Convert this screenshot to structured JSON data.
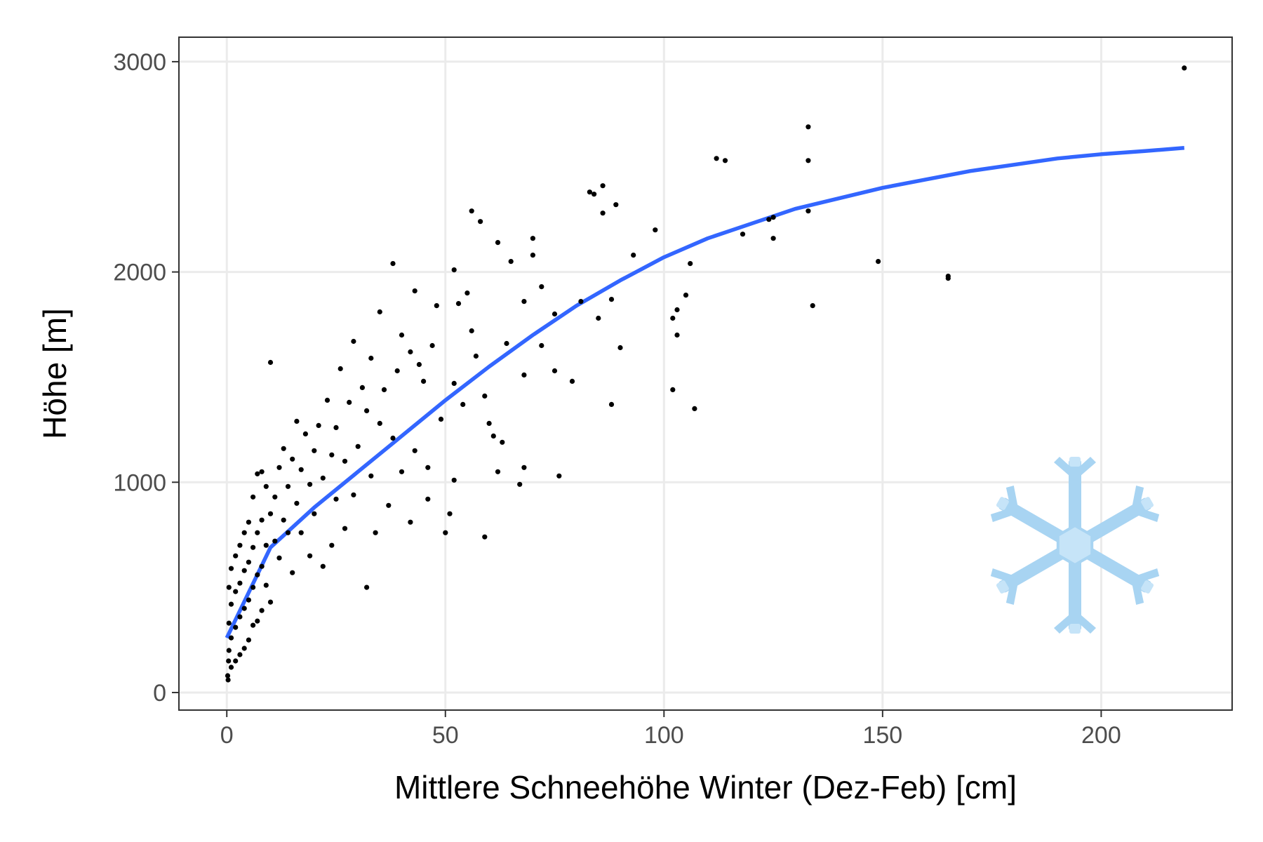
{
  "chart_data": {
    "type": "scatter",
    "title": "",
    "xlabel": "Mittlere Schneehöhe Winter (Dez-Feb) [cm]",
    "ylabel": "Höhe [m]",
    "xlim": [
      -10.95,
      229.95
    ],
    "ylim": [
      -83.5,
      3116.5
    ],
    "x_ticks": [
      0,
      50,
      100,
      150,
      200
    ],
    "y_ticks": [
      0,
      1000,
      2000,
      3000
    ],
    "x_tick_labels": [
      "0",
      "50",
      "100",
      "150",
      "200"
    ],
    "y_tick_labels": [
      "0",
      "1000",
      "2000",
      "3000"
    ],
    "grid": true,
    "legend": "none",
    "colors": {
      "points": "#000000",
      "fit_line": "#3366ff",
      "grid": "#ebebeb",
      "panel_border": "#333333",
      "snowflake": "#a8d4f2"
    },
    "decoration_icon": "snowflake-icon",
    "series": [
      {
        "kind": "points",
        "points": [
          [
            219,
            2970
          ],
          [
            133,
            2690
          ],
          [
            133,
            2530
          ],
          [
            112,
            2540
          ],
          [
            114,
            2530
          ],
          [
            165,
            1980
          ],
          [
            165,
            1970
          ],
          [
            149,
            2050
          ],
          [
            134,
            1840
          ],
          [
            133,
            2290
          ],
          [
            125,
            2260
          ],
          [
            124,
            2250
          ],
          [
            125,
            2160
          ],
          [
            118,
            2180
          ],
          [
            106,
            2040
          ],
          [
            105,
            1890
          ],
          [
            103,
            1820
          ],
          [
            102,
            1780
          ],
          [
            103,
            1700
          ],
          [
            102,
            1440
          ],
          [
            107,
            1350
          ],
          [
            98,
            2200
          ],
          [
            93,
            2080
          ],
          [
            89,
            2320
          ],
          [
            86,
            2410
          ],
          [
            86,
            2280
          ],
          [
            84,
            2370
          ],
          [
            83,
            2380
          ],
          [
            90,
            1640
          ],
          [
            88,
            1870
          ],
          [
            85,
            1780
          ],
          [
            88,
            1370
          ],
          [
            81,
            1860
          ],
          [
            79,
            1480
          ],
          [
            76,
            1030
          ],
          [
            75,
            1800
          ],
          [
            75,
            1530
          ],
          [
            72,
            1930
          ],
          [
            72,
            1650
          ],
          [
            70,
            2160
          ],
          [
            70,
            2080
          ],
          [
            68,
            1860
          ],
          [
            68,
            1510
          ],
          [
            68,
            1070
          ],
          [
            67,
            990
          ],
          [
            65,
            2050
          ],
          [
            64,
            1660
          ],
          [
            63,
            1190
          ],
          [
            62,
            2140
          ],
          [
            62,
            1050
          ],
          [
            61,
            1220
          ],
          [
            60,
            1280
          ],
          [
            59,
            1410
          ],
          [
            59,
            740
          ],
          [
            58,
            2240
          ],
          [
            57,
            1600
          ],
          [
            56,
            2290
          ],
          [
            56,
            1720
          ],
          [
            55,
            1900
          ],
          [
            54,
            1370
          ],
          [
            53,
            1850
          ],
          [
            52,
            2010
          ],
          [
            52,
            1470
          ],
          [
            52,
            1010
          ],
          [
            51,
            850
          ],
          [
            50,
            760
          ],
          [
            49,
            1300
          ],
          [
            48,
            1840
          ],
          [
            47,
            1650
          ],
          [
            46,
            1070
          ],
          [
            46,
            920
          ],
          [
            45,
            1480
          ],
          [
            44,
            1560
          ],
          [
            43,
            1910
          ],
          [
            43,
            1150
          ],
          [
            42,
            1620
          ],
          [
            42,
            810
          ],
          [
            40,
            1700
          ],
          [
            40,
            1050
          ],
          [
            39,
            1530
          ],
          [
            38,
            2040
          ],
          [
            38,
            1210
          ],
          [
            37,
            890
          ],
          [
            36,
            1440
          ],
          [
            35,
            1810
          ],
          [
            35,
            1280
          ],
          [
            34,
            760
          ],
          [
            33,
            1590
          ],
          [
            33,
            1030
          ],
          [
            32,
            1340
          ],
          [
            32,
            500
          ],
          [
            31,
            1450
          ],
          [
            30,
            1170
          ],
          [
            29,
            1670
          ],
          [
            29,
            940
          ],
          [
            28,
            1380
          ],
          [
            27,
            1100
          ],
          [
            27,
            780
          ],
          [
            26,
            1540
          ],
          [
            25,
            1260
          ],
          [
            25,
            920
          ],
          [
            24,
            1130
          ],
          [
            24,
            700
          ],
          [
            23,
            1390
          ],
          [
            22,
            1020
          ],
          [
            22,
            600
          ],
          [
            21,
            1270
          ],
          [
            20,
            1150
          ],
          [
            20,
            850
          ],
          [
            19,
            990
          ],
          [
            19,
            650
          ],
          [
            18,
            1230
          ],
          [
            17,
            1060
          ],
          [
            17,
            760
          ],
          [
            16,
            1290
          ],
          [
            16,
            900
          ],
          [
            15,
            1110
          ],
          [
            15,
            570
          ],
          [
            14,
            980
          ],
          [
            14,
            760
          ],
          [
            13,
            1160
          ],
          [
            13,
            820
          ],
          [
            12,
            1070
          ],
          [
            12,
            640
          ],
          [
            11,
            930
          ],
          [
            11,
            720
          ],
          [
            10,
            1570
          ],
          [
            10,
            850
          ],
          [
            10,
            430
          ],
          [
            9,
            980
          ],
          [
            9,
            700
          ],
          [
            9,
            510
          ],
          [
            8,
            1050
          ],
          [
            8,
            820
          ],
          [
            8,
            600
          ],
          [
            8,
            390
          ],
          [
            7,
            1040
          ],
          [
            7,
            760
          ],
          [
            7,
            560
          ],
          [
            7,
            340
          ],
          [
            6,
            930
          ],
          [
            6,
            690
          ],
          [
            6,
            500
          ],
          [
            6,
            320
          ],
          [
            5,
            810
          ],
          [
            5,
            620
          ],
          [
            5,
            440
          ],
          [
            5,
            250
          ],
          [
            4,
            760
          ],
          [
            4,
            580
          ],
          [
            4,
            400
          ],
          [
            4,
            210
          ],
          [
            3,
            700
          ],
          [
            3,
            520
          ],
          [
            3,
            360
          ],
          [
            3,
            180
          ],
          [
            2,
            650
          ],
          [
            2,
            480
          ],
          [
            2,
            310
          ],
          [
            2,
            150
          ],
          [
            1,
            590
          ],
          [
            1,
            420
          ],
          [
            1,
            260
          ],
          [
            1,
            120
          ],
          [
            0.5,
            500
          ],
          [
            0.5,
            330
          ],
          [
            0.5,
            200
          ],
          [
            0.2,
            80
          ],
          [
            0.3,
            60
          ],
          [
            0.4,
            150
          ]
        ]
      },
      {
        "kind": "fit_line",
        "x": [
          0,
          10,
          20,
          30,
          40,
          50,
          60,
          70,
          80,
          90,
          100,
          110,
          120,
          130,
          140,
          150,
          160,
          170,
          180,
          190,
          200,
          210,
          219
        ],
        "y": [
          260,
          690,
          880,
          1050,
          1220,
          1390,
          1550,
          1700,
          1840,
          1960,
          2070,
          2160,
          2230,
          2300,
          2350,
          2400,
          2440,
          2480,
          2510,
          2540,
          2560,
          2575,
          2590
        ]
      }
    ]
  }
}
